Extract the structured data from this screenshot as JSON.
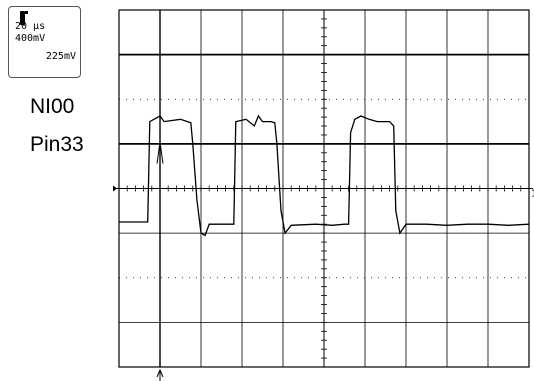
{
  "readout": {
    "timebase": "20 μs",
    "volts_per_div": "400mV",
    "trigger_level": "225mV"
  },
  "labels": {
    "channel_name": "NI00",
    "pin_name": "Pin33"
  },
  "chart_data": {
    "type": "line",
    "title": "",
    "xlabel": "",
    "ylabel": "",
    "grid": true,
    "xlim": [
      0,
      200
    ],
    "ylim": [
      -1600,
      1600
    ],
    "x_units": "μs",
    "y_units": "mV",
    "series": [
      {
        "points": [
          [
            0,
            -300
          ],
          [
            10,
            -300
          ],
          [
            14,
            -300
          ],
          [
            15,
            600
          ],
          [
            20,
            650
          ],
          [
            22,
            600
          ],
          [
            30,
            620
          ],
          [
            35,
            590
          ],
          [
            36,
            400
          ],
          [
            38,
            -100
          ],
          [
            40,
            -400
          ],
          [
            42,
            -420
          ],
          [
            44,
            -320
          ],
          [
            56,
            -320
          ],
          [
            57,
            600
          ],
          [
            62,
            620
          ],
          [
            66,
            560
          ],
          [
            68,
            650
          ],
          [
            70,
            600
          ],
          [
            74,
            600
          ],
          [
            76,
            590
          ],
          [
            77,
            400
          ],
          [
            79,
            -200
          ],
          [
            81,
            -400
          ],
          [
            84,
            -330
          ],
          [
            96,
            -320
          ],
          [
            104,
            -330
          ],
          [
            110,
            -320
          ],
          [
            112,
            -320
          ],
          [
            113,
            500
          ],
          [
            115,
            620
          ],
          [
            118,
            650
          ],
          [
            122,
            620
          ],
          [
            126,
            600
          ],
          [
            132,
            600
          ],
          [
            134,
            560
          ],
          [
            135,
            -200
          ],
          [
            137,
            -400
          ],
          [
            140,
            -320
          ],
          [
            150,
            -320
          ],
          [
            160,
            -330
          ],
          [
            170,
            -320
          ],
          [
            180,
            -320
          ],
          [
            190,
            -330
          ],
          [
            200,
            -320
          ]
        ]
      }
    ]
  }
}
